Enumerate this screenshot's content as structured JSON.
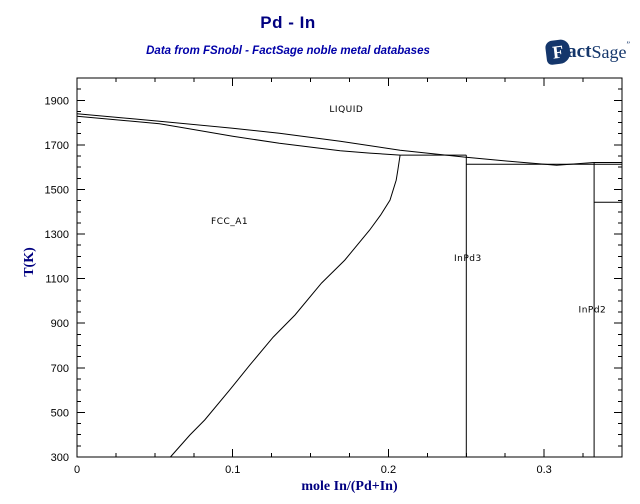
{
  "header": {
    "title": "Pd - In",
    "subtitle": "Data from FSnobl - FactSage noble metal databases",
    "logo_f": "F",
    "logo_act": "act",
    "logo_sage": "Sage",
    "logo_tm": "”"
  },
  "colors": {
    "title": "#000080",
    "subtitle": "#0000A8",
    "axis_title": "#000080",
    "logo": "#14366b",
    "lines": "#000000"
  },
  "chart_data": {
    "type": "line",
    "title": "Pd - In",
    "xlabel": "mole In/(Pd+In)",
    "ylabel": "T(K)",
    "xlim": [
      0,
      0.35
    ],
    "ylim": [
      300,
      2000
    ],
    "grid": false,
    "x_tick_values": [
      0,
      0.1,
      0.2,
      0.3
    ],
    "x_tick_labels": [
      "0",
      "0.1",
      "0.2",
      "0.3"
    ],
    "x_minor_step": 0.025,
    "y_tick_values": [
      300,
      500,
      700,
      900,
      1100,
      1300,
      1500,
      1700,
      1900
    ],
    "y_tick_labels": [
      "300",
      "500",
      "700",
      "900",
      "1100",
      "1300",
      "1500",
      "1700",
      "1900"
    ],
    "y_minor_step": 50,
    "region_labels": [
      {
        "text": "LIQUID",
        "x": 0.173,
        "T": 1860
      },
      {
        "text": "FCC_A1",
        "x": 0.098,
        "T": 1358
      },
      {
        "text": "InPd3",
        "x": 0.251,
        "T": 1192
      },
      {
        "text": "InPd2",
        "x": 0.331,
        "T": 962
      }
    ],
    "series": [
      {
        "name": "liquidus",
        "points": [
          [
            0,
            1840
          ],
          [
            0.053,
            1806
          ],
          [
            0.1,
            1775
          ],
          [
            0.13,
            1752
          ],
          [
            0.169,
            1716
          ],
          [
            0.2075,
            1676
          ],
          [
            0.249,
            1645
          ],
          [
            0.285,
            1622
          ],
          [
            0.308,
            1609
          ],
          [
            0.332,
            1621
          ],
          [
            0.35,
            1621
          ]
        ]
      },
      {
        "name": "solidus",
        "points": [
          [
            0,
            1828
          ],
          [
            0.053,
            1795
          ],
          [
            0.1,
            1739
          ],
          [
            0.13,
            1707
          ],
          [
            0.169,
            1674
          ],
          [
            0.188,
            1663
          ],
          [
            0.2075,
            1654
          ]
        ]
      },
      {
        "name": "fcc-solvus",
        "points": [
          [
            0.2075,
            1654
          ],
          [
            0.206,
            1586
          ],
          [
            0.205,
            1542
          ],
          [
            0.201,
            1452
          ],
          [
            0.195,
            1385
          ],
          [
            0.188,
            1318
          ],
          [
            0.172,
            1183
          ],
          [
            0.157,
            1080
          ],
          [
            0.14,
            937
          ],
          [
            0.126,
            838
          ],
          [
            0.111,
            712
          ],
          [
            0.098,
            600
          ],
          [
            0.082,
            466
          ],
          [
            0.0726,
            399
          ],
          [
            0.06,
            300
          ]
        ]
      },
      {
        "name": "peritectic-isotherm",
        "points": [
          [
            0.2075,
            1654
          ],
          [
            0.25,
            1654
          ]
        ]
      },
      {
        "name": "eutectic-isotherm",
        "points": [
          [
            0.25,
            1613
          ],
          [
            0.35,
            1613
          ]
        ]
      },
      {
        "name": "inpd3-stoichiometric-line",
        "points": [
          [
            0.25,
            1654
          ],
          [
            0.25,
            300
          ]
        ]
      },
      {
        "name": "inpd2-stoichiometric-line",
        "points": [
          [
            0.3321,
            1621
          ],
          [
            0.3321,
            300
          ]
        ]
      },
      {
        "name": "right-isotherm",
        "points": [
          [
            0.3321,
            1443
          ],
          [
            0.35,
            1443
          ]
        ]
      }
    ]
  }
}
